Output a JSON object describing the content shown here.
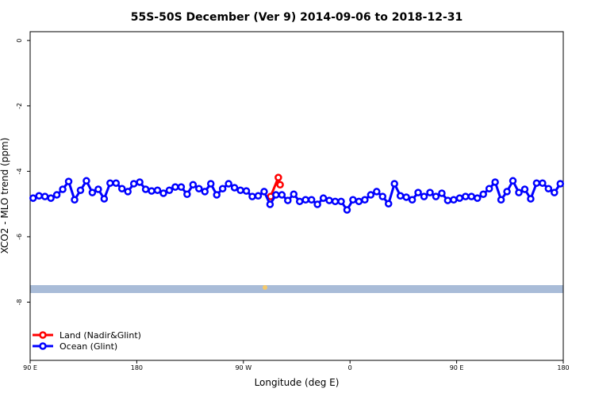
{
  "chart_data": {
    "type": "line",
    "title": "55S-50S December (Ver 9)   2014-09-06 to 2018-12-31",
    "x_label": "Longitude (deg E)",
    "y_label": "XCO2 - MLO trend (ppm)",
    "xlim": [
      90,
      540
    ],
    "xticks": [
      {
        "value": 90,
        "label": "90 E"
      },
      180,
      {
        "value": 270,
        "label": "90 W"
      },
      {
        "value": 360,
        "label": "0"
      },
      {
        "value": 450,
        "label": "90 E"
      },
      {
        "value": 540,
        "label": "180"
      }
    ],
    "ylim": [
      -9.78,
      0.27
    ],
    "yticks": [
      0,
      -2,
      -4,
      -6,
      -8
    ],
    "legend": "bottom-left",
    "series": [
      {
        "name": "Land (Nadir&Glint)",
        "color": "#ff0000",
        "x": [
          293,
          299.5,
          301
        ],
        "values": [
          -4.77,
          -4.19,
          -4.41
        ]
      },
      {
        "name": "Ocean (Glint)",
        "color": "#0000ff",
        "x": [
          92.5,
          97.5,
          102.5,
          107.5,
          112.5,
          117.5,
          122.5,
          127.5,
          132.5,
          137.5,
          142.5,
          147.5,
          152.5,
          157.5,
          162.5,
          167.5,
          172.5,
          177.5,
          182.5,
          187.5,
          192.5,
          197.5,
          202.5,
          207.5,
          212.5,
          217.5,
          222.5,
          227.5,
          232.5,
          237.5,
          242.5,
          247.5,
          252.5,
          257.5,
          262.5,
          267.5,
          272.5,
          277.5,
          282.5,
          287.5,
          292.5,
          297.5,
          302.5,
          307.5,
          312.5,
          317.5,
          322.5,
          327.5,
          332.5,
          337.5,
          342.5,
          347.5,
          352.5,
          357.5,
          362.5,
          367.5,
          372.5,
          377.5,
          382.5,
          387.5,
          392.5,
          397.5,
          402.5,
          407.5,
          412.5,
          417.5,
          422.5,
          427.5,
          432.5,
          437.5,
          442.5,
          447.5,
          452.5,
          457.5,
          462.5,
          467.5,
          472.5,
          477.5,
          482.5,
          487.5,
          492.5,
          497.5,
          502.5,
          507.5,
          512.5,
          517.5,
          522.5,
          527.5,
          532.5,
          537.5
        ],
        "values": [
          -4.82,
          -4.75,
          -4.77,
          -4.82,
          -4.72,
          -4.55,
          -4.31,
          -4.87,
          -4.58,
          -4.29,
          -4.65,
          -4.55,
          -4.84,
          -4.36,
          -4.36,
          -4.53,
          -4.62,
          -4.38,
          -4.33,
          -4.55,
          -4.6,
          -4.58,
          -4.67,
          -4.58,
          -4.48,
          -4.48,
          -4.7,
          -4.41,
          -4.53,
          -4.62,
          -4.38,
          -4.72,
          -4.53,
          -4.38,
          -4.5,
          -4.58,
          -4.6,
          -4.77,
          -4.75,
          -4.62,
          -5.01,
          -4.72,
          -4.72,
          -4.89,
          -4.7,
          -4.92,
          -4.87,
          -4.87,
          -5.01,
          -4.82,
          -4.89,
          -4.92,
          -4.92,
          -5.18,
          -4.87,
          -4.92,
          -4.87,
          -4.72,
          -4.62,
          -4.77,
          -4.99,
          -4.38,
          -4.75,
          -4.79,
          -4.87,
          -4.65,
          -4.77,
          -4.65,
          -4.77,
          -4.67,
          -4.89,
          -4.87,
          -4.82,
          -4.77,
          -4.77,
          -4.82,
          -4.7,
          -4.53,
          -4.33,
          -4.87,
          -4.62,
          -4.29,
          -4.65,
          -4.55,
          -4.84,
          -4.36,
          -4.36,
          -4.53,
          -4.65,
          -4.38
        ]
      }
    ]
  }
}
